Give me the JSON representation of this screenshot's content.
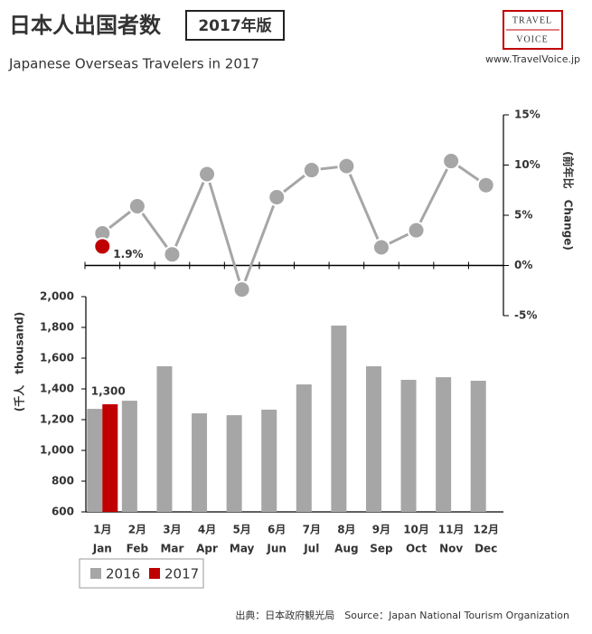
{
  "header": {
    "title": "日本人出国者数",
    "badge": "2017年版",
    "subtitle": "Japanese Overseas Travelers in 2017",
    "logo_top": "TRAVEL",
    "logo_bottom": "VOICE",
    "url": "www.TravelVoice.jp"
  },
  "footer": {
    "source": "出典：日本政府観光局　Source：Japan National Tourism Organization"
  },
  "chart_data": [
    {
      "type": "line",
      "y2_label": "(前年比　Change)",
      "y2lim": [
        -5,
        15
      ],
      "y2ticks": [
        {
          "value": 15,
          "label": "15%"
        },
        {
          "value": 10,
          "label": "10%"
        },
        {
          "value": 5,
          "label": "5%"
        },
        {
          "value": 0,
          "label": "0%"
        },
        {
          "value": -5,
          "label": "-5%"
        }
      ],
      "series": [
        {
          "name": "2016",
          "color": "#a6a6a6",
          "axis": "y2",
          "values": [
            3.2,
            5.9,
            1.1,
            9.1,
            -2.4,
            6.8,
            9.5,
            9.9,
            1.8,
            3.5,
            10.4,
            8.0
          ]
        },
        {
          "name": "2017",
          "color": "#c00000",
          "axis": "y2",
          "values": [
            1.9,
            null,
            null,
            null,
            null,
            null,
            null,
            null,
            null,
            null,
            null,
            null
          ],
          "value_labels": [
            "1.9%",
            null,
            null,
            null,
            null,
            null,
            null,
            null,
            null,
            null,
            null,
            null
          ]
        }
      ]
    },
    {
      "type": "bar",
      "y_label": "(千人　thousand)",
      "categories": [
        [
          "1月",
          "Jan"
        ],
        [
          "2月",
          "Feb"
        ],
        [
          "3月",
          "Mar"
        ],
        [
          "4月",
          "Apr"
        ],
        [
          "5月",
          "May"
        ],
        [
          "6月",
          "Jun"
        ],
        [
          "7月",
          "Jul"
        ],
        [
          "8月",
          "Aug"
        ],
        [
          "9月",
          "Sep"
        ],
        [
          "10月",
          "Oct"
        ],
        [
          "11月",
          "Nov"
        ],
        [
          "12月",
          "Dec"
        ]
      ],
      "ylim": [
        600,
        2000
      ],
      "yticks": [
        {
          "value": 2000,
          "label": "2,000"
        },
        {
          "value": 1800,
          "label": "1,800"
        },
        {
          "value": 1600,
          "label": "1,600"
        },
        {
          "value": 1400,
          "label": "1,400"
        },
        {
          "value": 1200,
          "label": "1,200"
        },
        {
          "value": 1000,
          "label": "1,000"
        },
        800,
        600
      ],
      "legend": "bottom-left",
      "series": [
        {
          "name": "2016",
          "color": "#a6a6a6",
          "values": [
            1270,
            1323,
            1547,
            1241,
            1229,
            1265,
            1429,
            1812,
            1547,
            1459,
            1476,
            1453
          ]
        },
        {
          "name": "2017",
          "color": "#c00000",
          "values": [
            1300,
            null,
            null,
            null,
            null,
            null,
            null,
            null,
            null,
            null,
            null,
            null
          ],
          "value_labels": [
            "1,300",
            null,
            null,
            null,
            null,
            null,
            null,
            null,
            null,
            null,
            null,
            null
          ]
        }
      ]
    }
  ]
}
